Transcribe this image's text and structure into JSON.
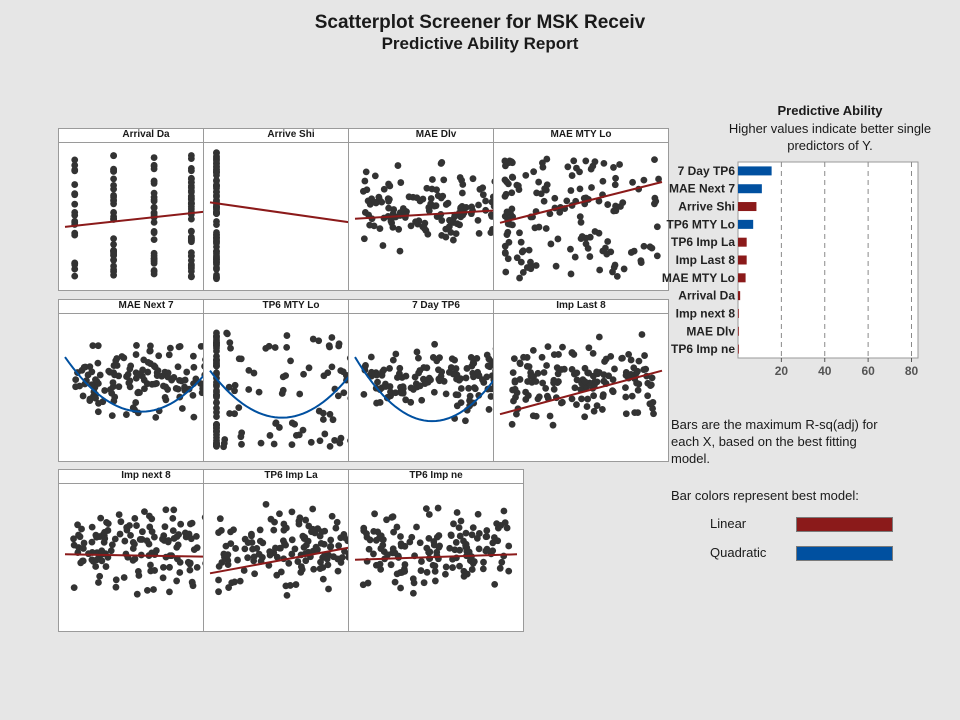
{
  "title": "Scatterplot Screener for MSK Receiv",
  "subtitle": "Predictive Ability Report",
  "colors": {
    "linear": "#8b1a1a",
    "quadratic": "#0050a0",
    "points": "#333333",
    "background": "#e6e6e6"
  },
  "panels": [
    {
      "label": "Arrival Da",
      "pattern": "vert",
      "fit": "linear",
      "line": [
        0.42,
        0.55
      ]
    },
    {
      "label": "Arrive Shi",
      "pattern": "binary",
      "fit": "linear",
      "line": [
        0.6,
        0.43
      ]
    },
    {
      "label": "MAE Dlv",
      "pattern": "cloud",
      "fit": "linear",
      "line": [
        0.48,
        0.55
      ]
    },
    {
      "label": "MAE MTY Lo",
      "pattern": "skew",
      "fit": "linear",
      "line": [
        0.45,
        0.75
      ]
    },
    {
      "label": "MAE Next 7",
      "pattern": "bowl",
      "fit": "quadratic",
      "line": [
        0.72,
        0.32,
        0.82
      ]
    },
    {
      "label": "TP6 MTY Lo",
      "pattern": "stripe",
      "fit": "quadratic",
      "line": [
        0.62,
        0.28,
        0.82
      ]
    },
    {
      "label": "7 Day TP6",
      "pattern": "bowl",
      "fit": "quadratic",
      "line": [
        0.72,
        0.25,
        0.82
      ]
    },
    {
      "label": "Imp Last 8",
      "pattern": "cloud",
      "fit": "linear",
      "line": [
        0.3,
        0.62
      ]
    },
    {
      "label": "Imp next 8",
      "pattern": "cloud",
      "fit": "linear",
      "line": [
        0.52,
        0.5
      ]
    },
    {
      "label": "TP6 Imp La",
      "pattern": "cloud",
      "fit": "linear",
      "line": [
        0.38,
        0.6
      ]
    },
    {
      "label": "TP6 Imp ne",
      "pattern": "cloud",
      "fit": "linear",
      "line": [
        0.48,
        0.52
      ]
    }
  ],
  "predictive_ability": {
    "title": "Predictive Ability",
    "desc_line1": "Higher values indicate better single",
    "desc_line2": "predictors of Y.",
    "note_line1": "Bars are the maximum R-sq(adj) for",
    "note_line2": "each X, based on the best fitting",
    "note_line3": "model.",
    "colors_note": "Bar colors represent best model:",
    "legend": [
      {
        "label": "Linear",
        "color": "#8b1a1a"
      },
      {
        "label": "Quadratic",
        "color": "#0050a0"
      }
    ]
  },
  "chart_data": {
    "type": "bar",
    "orientation": "horizontal",
    "title": "Predictive Ability",
    "categories": [
      "7 Day TP6",
      "MAE Next 7",
      "Arrive Shi",
      "TP6 MTY Lo",
      "TP6 Imp La",
      "Imp Last 8",
      "MAE MTY Lo",
      "Arrival Da",
      "Imp next 8",
      "MAE Dlv",
      "TP6 Imp ne"
    ],
    "values": [
      15.5,
      11,
      8.5,
      7,
      4,
      4,
      3.5,
      1,
      0.3,
      0.3,
      0.2
    ],
    "model": [
      "quadratic",
      "quadratic",
      "linear",
      "quadratic",
      "linear",
      "linear",
      "linear",
      "linear",
      "linear",
      "linear",
      "linear"
    ],
    "xticks": [
      20,
      40,
      60,
      80
    ],
    "xlim": [
      0,
      83
    ],
    "grid": "vertical dashed"
  }
}
